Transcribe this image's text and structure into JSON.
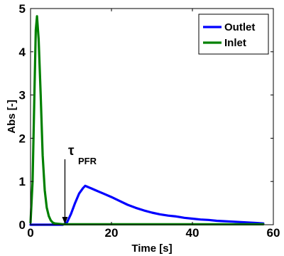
{
  "chart_data": {
    "type": "line",
    "title": "",
    "xlabel": "Time [s]",
    "ylabel": "Abs [-]",
    "xlim": [
      0,
      60
    ],
    "ylim": [
      0,
      5
    ],
    "xticks": [
      0,
      20,
      40,
      60
    ],
    "yticks": [
      0,
      1,
      2,
      3,
      4,
      5
    ],
    "grid": false,
    "legend_position": "top-right",
    "series": [
      {
        "name": "Outlet",
        "color": "#0000ff",
        "x": [
          0,
          8,
          9,
          10,
          11,
          12,
          13,
          13.5,
          14,
          15,
          16,
          17,
          18,
          20,
          22,
          24,
          26,
          28,
          30,
          32,
          34,
          36,
          38,
          40,
          42,
          44,
          46,
          48,
          50,
          52,
          54,
          56,
          57.5
        ],
        "y": [
          0,
          0,
          0.05,
          0.25,
          0.5,
          0.72,
          0.85,
          0.9,
          0.88,
          0.84,
          0.8,
          0.76,
          0.72,
          0.64,
          0.55,
          0.46,
          0.39,
          0.33,
          0.28,
          0.24,
          0.21,
          0.19,
          0.16,
          0.14,
          0.12,
          0.11,
          0.09,
          0.08,
          0.07,
          0.06,
          0.05,
          0.04,
          0.03
        ]
      },
      {
        "name": "Inlet",
        "color": "#008000",
        "x": [
          0,
          0.5,
          1,
          1.3,
          1.6,
          2,
          2.5,
          3,
          3.5,
          4,
          4.5,
          5,
          5.5,
          6,
          7,
          8,
          10,
          20,
          30,
          40,
          50,
          57.5
        ],
        "y": [
          0.05,
          1.0,
          3.2,
          4.5,
          4.82,
          4.3,
          3.0,
          1.6,
          0.8,
          0.4,
          0.2,
          0.1,
          0.05,
          0.03,
          0.02,
          0.01,
          0.01,
          0.01,
          0.01,
          0.01,
          0.01,
          0.01
        ]
      }
    ],
    "annotations": [
      {
        "text": "τ",
        "subscript": "PFR",
        "points_to_x": 8.5,
        "points_to_y": 0
      }
    ]
  }
}
